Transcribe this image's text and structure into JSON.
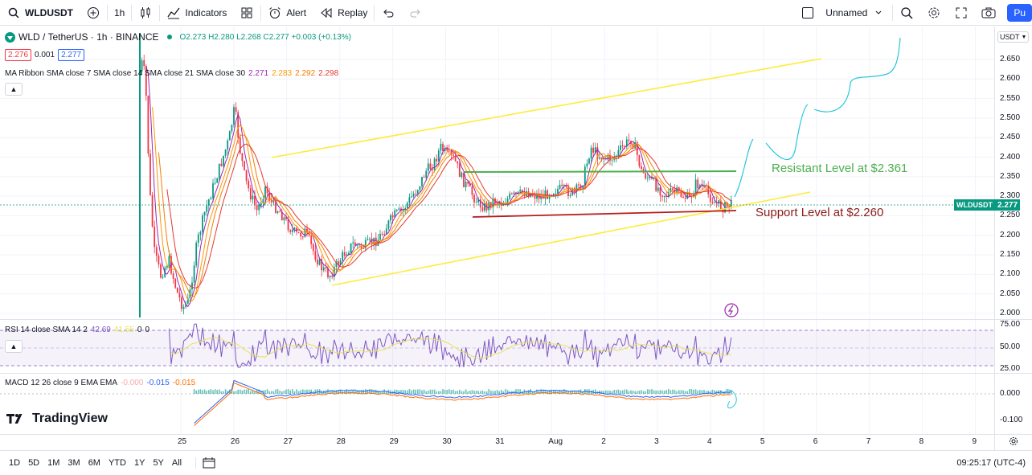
{
  "toolbar": {
    "symbol": "WLDUSDT",
    "interval": "1h",
    "indicators_label": "Indicators",
    "alert_label": "Alert",
    "replay_label": "Replay",
    "layout_name": "Unnamed",
    "publish_label": "Pu"
  },
  "main_legend": {
    "title": "WLD / TetherUS · 1h · BINANCE",
    "ohlc": "O2.273 H2.280 L2.268 C2.277 +0.003 (+0.13%)",
    "bid": "2.276",
    "spread": "0.001",
    "ask": "2.277"
  },
  "ma_ribbon": {
    "label": "MA Ribbon SMA close 7 SMA close 14 SMA close 21 SMA close 30",
    "values": [
      {
        "text": "2.271",
        "color": "#9c27b0"
      },
      {
        "text": "2.283",
        "color": "#ff9800"
      },
      {
        "text": "2.292",
        "color": "#f57c00"
      },
      {
        "text": "2.298",
        "color": "#e53935"
      }
    ]
  },
  "rsi_legend": {
    "label": "RSI 14 close SMA 14 2",
    "v1": "42.69",
    "v2": "41.55",
    "v3": "0",
    "v4": "0"
  },
  "macd_legend": {
    "label": "MACD 12 26 close 9 EMA EMA",
    "v1": "-0.000",
    "v2": "-0.015",
    "v3": "-0.015"
  },
  "annotations": {
    "resistance": "Resistant Level at $2.361",
    "support": "Support Level at $2.260"
  },
  "price_axis": {
    "currency": "USDT",
    "ticks": [
      "2.650",
      "2.600",
      "2.550",
      "2.500",
      "2.450",
      "2.400",
      "2.350",
      "2.300",
      "2.250",
      "2.200",
      "2.150",
      "2.100",
      "2.050",
      "2.000"
    ],
    "last_symbol": "WLDUSDT",
    "last_price": "2.277",
    "rsi_ticks": [
      "75.00",
      "50.00",
      "25.00"
    ],
    "macd_ticks": [
      "0.000",
      "-0.100"
    ]
  },
  "time_axis": {
    "ticks": [
      "25",
      "26",
      "27",
      "28",
      "29",
      "30",
      "31",
      "Aug",
      "2",
      "3",
      "4",
      "5",
      "6",
      "7",
      "8",
      "9"
    ]
  },
  "bottom": {
    "ranges": [
      "1D",
      "5D",
      "1M",
      "3M",
      "6M",
      "YTD",
      "1Y",
      "5Y",
      "All"
    ],
    "clock": "09:25:17 (UTC-4)"
  },
  "logo_text": "TradingView",
  "colors": {
    "up": "#089981",
    "down": "#f23645",
    "channel": "#ffeb3b",
    "resistance": "#4caf50",
    "support": "#b71c1c",
    "rsi": "#7e57c2"
  }
}
